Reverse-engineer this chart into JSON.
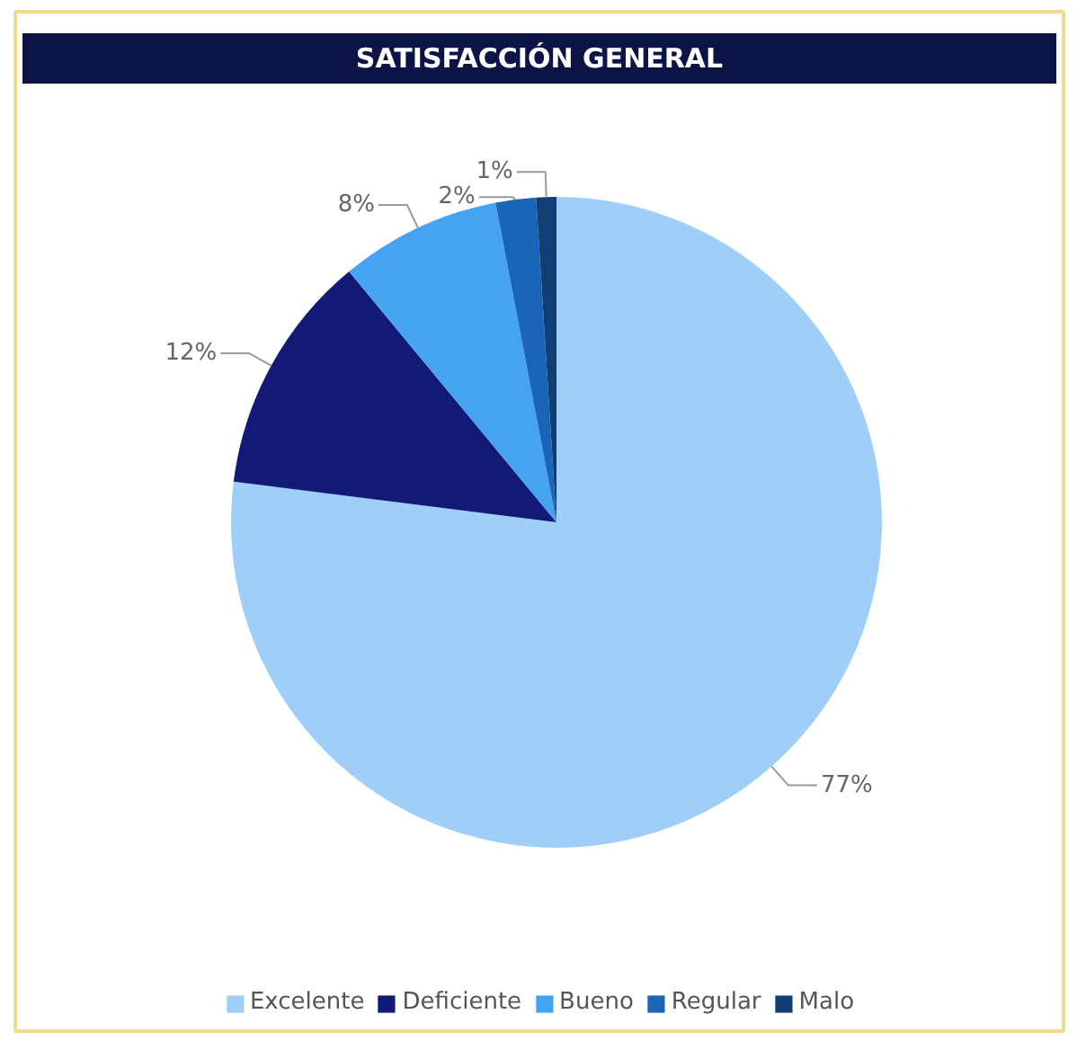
{
  "chart_data": {
    "type": "pie",
    "title": "SATISFACCIÓN GENERAL",
    "categories": [
      "Excelente",
      "Deficiente",
      "Bueno",
      "Regular",
      "Malo"
    ],
    "values": [
      77,
      12,
      8,
      2,
      1
    ],
    "colors": [
      "#9fcff8",
      "#121a78",
      "#45a3f2",
      "#1a65b8",
      "#123f73"
    ],
    "value_labels": [
      "77%",
      "12%",
      "8%",
      "2%",
      "1%"
    ],
    "legend": "bottom"
  }
}
